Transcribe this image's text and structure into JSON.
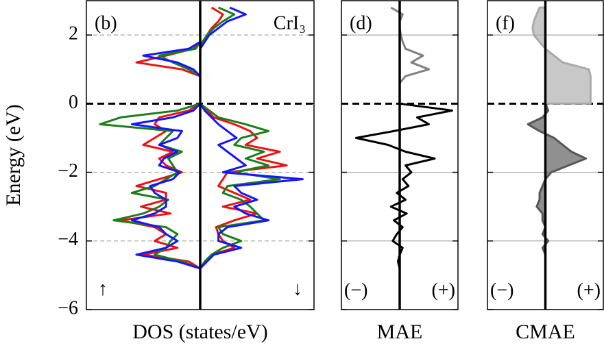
{
  "chart_data": [
    {
      "type": "line",
      "label": "(b)",
      "material": "CrI₃",
      "ylabel": "Energy (eV)",
      "xlabel": "DOS (states/eV)",
      "annotations": [
        "↑",
        "↓"
      ],
      "y": [
        2.8,
        2.6,
        2.4,
        2.2,
        2.0,
        1.8,
        1.6,
        1.4,
        1.2,
        1.0,
        0.8,
        0.6,
        0.4,
        0.2,
        0,
        -0.2,
        -0.4,
        -0.6,
        -0.8,
        -1.0,
        -1.2,
        -1.4,
        -1.6,
        -1.8,
        -2.0,
        -2.2,
        -2.4,
        -2.6,
        -2.8,
        -3.0,
        -3.2,
        -3.4,
        -3.6,
        -3.8,
        -4.0,
        -4.2,
        -4.4,
        -4.6,
        -4.8
      ],
      "xlim": [
        -5,
        5
      ],
      "ylim": [
        -6,
        3
      ],
      "yticks": [
        {
          "value": -6,
          "label": "−6"
        },
        {
          "value": -4,
          "label": "−4"
        },
        {
          "value": -2,
          "label": "−2"
        },
        0,
        2
      ],
      "grid": true,
      "grid_style": "dashed",
      "series": [
        {
          "color": "#ee1111",
          "values": [
            0,
            0,
            0,
            0,
            0,
            0,
            -0.3,
            -1.5,
            -2.8,
            -0.8,
            0,
            0,
            0,
            0,
            0,
            -0.5,
            -1.8,
            -2.0,
            -1.5,
            -2.0,
            -2.5,
            -1.2,
            -1.8,
            -1.5,
            -0.8,
            -1.8,
            -2.8,
            -1.5,
            -1.5,
            -2.6,
            -1.3,
            -3.5,
            -2.0,
            -1.5,
            -2.0,
            -1.0,
            -2.5,
            -0.5,
            0
          ]
        },
        {
          "color": "#ee1111",
          "values": [
            0.5,
            1.0,
            0.8,
            0.5,
            0.3,
            0.2,
            0,
            0,
            0,
            0,
            0,
            0,
            0,
            0,
            0,
            0.3,
            0.6,
            1.5,
            2.2,
            2.5,
            2.0,
            3.5,
            2.5,
            3.8,
            1.2,
            1.0,
            0.8,
            1.5,
            2.2,
            1.0,
            2.5,
            1.5,
            0.7,
            0.8,
            1.0,
            1.5,
            0.5,
            0.2,
            0
          ]
        },
        {
          "color": "#1a7f1a",
          "values": [
            0,
            0,
            0,
            0,
            0,
            0,
            -0.2,
            -1.8,
            -1.2,
            -0.5,
            0,
            0,
            0,
            0,
            0,
            -1.0,
            -3.5,
            -4.4,
            -1.2,
            -1.5,
            -1.8,
            -0.8,
            -1.4,
            -1.2,
            -1.0,
            -1.5,
            -2.0,
            -3.0,
            -1.4,
            -1.8,
            -2.5,
            -3.8,
            -1.5,
            -1.0,
            -1.3,
            -1.5,
            -2.0,
            -0.8,
            0
          ]
        },
        {
          "color": "#1a7f1a",
          "values": [
            0.8,
            1.5,
            1.0,
            0.6,
            0.3,
            0.1,
            0,
            0,
            0,
            0,
            0,
            0,
            0,
            0,
            0,
            0.4,
            0.8,
            2.0,
            3.0,
            1.8,
            1.5,
            2.8,
            2.0,
            3.0,
            1.5,
            3.5,
            1.2,
            1.0,
            1.8,
            2.2,
            2.5,
            2.8,
            0.8,
            1.0,
            1.8,
            1.0,
            0.5,
            0.2,
            0
          ]
        },
        {
          "color": "#1515ff",
          "values": [
            0,
            0,
            0,
            0,
            0,
            0,
            -0.5,
            -2.5,
            -1.0,
            -0.3,
            0,
            0,
            0,
            0,
            0,
            -0.3,
            -1.2,
            -3.0,
            -0.8,
            -1.0,
            -1.8,
            -1.0,
            -1.6,
            -1.8,
            -0.9,
            -1.2,
            -2.2,
            -2.0,
            -1.5,
            -1.5,
            -2.0,
            -3.0,
            -1.8,
            -1.5,
            -1.0,
            -1.5,
            -2.8,
            -1.0,
            0
          ]
        },
        {
          "color": "#1515ff",
          "values": [
            1.3,
            2.0,
            1.2,
            0.8,
            0.4,
            0.2,
            0,
            0,
            0,
            0,
            0,
            0,
            0,
            0,
            0,
            0.2,
            0.5,
            0.8,
            1.2,
            1.6,
            0.8,
            1.2,
            1.6,
            2.0,
            1.0,
            4.5,
            1.5,
            1.8,
            2.5,
            1.5,
            2.0,
            3.0,
            1.2,
            0.8,
            0.8,
            1.8,
            0.6,
            0.3,
            0
          ]
        }
      ]
    },
    {
      "type": "line",
      "label": "(d)",
      "xlabel": "MAE",
      "annotations": [
        "(−)",
        "(+)"
      ],
      "y": [
        2.8,
        2.6,
        2.4,
        2.2,
        2.0,
        1.8,
        1.6,
        1.4,
        1.2,
        1.0,
        0.8,
        0.6,
        0.4,
        0.2,
        0,
        -0.2,
        -0.4,
        -0.6,
        -0.8,
        -1.0,
        -1.2,
        -1.4,
        -1.6,
        -1.8,
        -2.0,
        -2.2,
        -2.4,
        -2.6,
        -2.8,
        -3.0,
        -3.2,
        -3.4,
        -3.6,
        -3.8,
        -4.0,
        -4.2,
        -4.4,
        -4.6,
        -4.8
      ],
      "xlim": [
        -1,
        1
      ],
      "ylim": [
        -6,
        3
      ],
      "yticks": [
        -6,
        -4,
        -2,
        0,
        2
      ],
      "grid": true,
      "grid_style": "solid",
      "series": [
        {
          "color": "#808080",
          "values": [
            -0.15,
            0.05,
            0,
            0,
            0.02,
            0.05,
            0.1,
            0.4,
            0.2,
            0.5,
            0.1,
            0,
            0,
            0,
            0,
            null,
            null,
            null,
            null,
            null,
            null,
            null,
            null,
            null,
            null,
            null,
            null,
            null,
            null,
            null,
            null,
            null,
            null,
            null,
            null,
            null,
            null,
            null,
            null
          ]
        },
        {
          "color": "#000000",
          "values": [
            null,
            null,
            null,
            null,
            null,
            null,
            null,
            null,
            null,
            null,
            null,
            null,
            null,
            null,
            0,
            0.9,
            0.3,
            0.5,
            -0.1,
            -0.75,
            -0.2,
            0.1,
            0.6,
            0.1,
            0.2,
            0.05,
            0.15,
            -0.05,
            0.1,
            -0.15,
            0.12,
            -0.1,
            0.05,
            -0.05,
            -0.12,
            0.05,
            0,
            -0.03,
            0
          ]
        }
      ]
    },
    {
      "type": "area",
      "label": "(f)",
      "xlabel": "CMAE",
      "annotations": [
        "(−)",
        "(+)"
      ],
      "y": [
        2.8,
        2.6,
        2.4,
        2.2,
        2.0,
        1.8,
        1.6,
        1.4,
        1.2,
        1.0,
        0.8,
        0.6,
        0.4,
        0.2,
        0,
        -0.2,
        -0.4,
        -0.6,
        -0.8,
        -1.0,
        -1.2,
        -1.4,
        -1.6,
        -1.8,
        -2.0,
        -2.2,
        -2.4,
        -2.6,
        -2.8,
        -3.0,
        -3.2,
        -3.4,
        -3.6,
        -3.8,
        -4.0,
        -4.2,
        -4.4,
        -4.6,
        -4.8
      ],
      "xlim": [
        -1,
        1
      ],
      "ylim": [
        -6,
        3
      ],
      "yticks": [
        -6,
        -4,
        -2,
        0,
        2
      ],
      "grid": true,
      "grid_style": "solid",
      "series": [
        {
          "color": "#aaaaaa",
          "values": [
            -0.1,
            -0.15,
            -0.2,
            -0.22,
            -0.2,
            -0.1,
            0,
            0.15,
            0.3,
            0.75,
            0.78,
            0.78,
            0.78,
            0.78,
            0.78,
            null,
            null,
            null,
            null,
            null,
            null,
            null,
            null,
            null,
            null,
            null,
            null,
            null,
            null,
            null,
            null,
            null,
            null,
            null,
            null,
            null,
            null,
            null,
            null
          ]
        },
        {
          "color": "#555555",
          "values": [
            null,
            null,
            null,
            null,
            null,
            null,
            null,
            null,
            null,
            null,
            null,
            null,
            null,
            null,
            0,
            0.05,
            -0.05,
            -0.3,
            -0.1,
            0.15,
            0.3,
            0.45,
            0.7,
            0.4,
            0.1,
            0,
            -0.05,
            -0.1,
            -0.1,
            -0.15,
            -0.05,
            -0.05,
            0,
            -0.05,
            0.05,
            -0.05,
            0,
            0,
            0
          ]
        }
      ]
    }
  ]
}
